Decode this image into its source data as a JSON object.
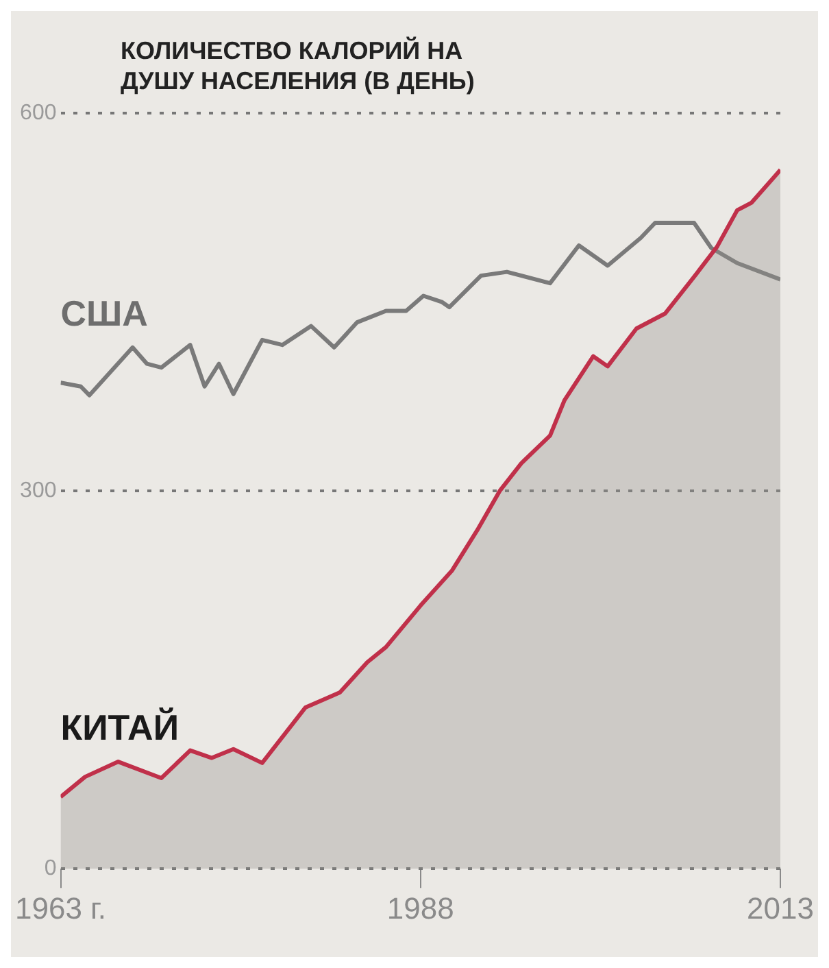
{
  "chart_data": {
    "type": "line",
    "title": "КОЛИЧЕСТВО КАЛОРИЙ НА ДУШУ НАСЕЛЕНИЯ (В ДЕНЬ)",
    "xlim": [
      1963,
      2013
    ],
    "xticks": [
      {
        "value": 1963,
        "label": "1963 г."
      },
      1988,
      2013
    ],
    "ylim": [
      0,
      600
    ],
    "yticks": [
      0,
      300,
      600
    ],
    "grid": "y",
    "line_style": "solid",
    "marker": "none",
    "series": [
      {
        "name": "США",
        "color": "#7a7a7a",
        "x": [
          1963,
          1964.4,
          1965,
          1968,
          1969,
          1970,
          1972,
          1973,
          1974,
          1975,
          1977,
          1978.4,
          1980.4,
          1982,
          1983.6,
          1985.6,
          1987,
          1988.2,
          1989.5,
          1990,
          1992.2,
          1994,
          1997,
          1999,
          2001,
          2003.3,
          2004.3,
          2007,
          2008.2,
          2010,
          2013
        ],
        "values": [
          386,
          383,
          376,
          414,
          401,
          398,
          416,
          383,
          401,
          377,
          420,
          416,
          431,
          414,
          434,
          443,
          443,
          455,
          450,
          446,
          471,
          474,
          465,
          495,
          479,
          501,
          513,
          513,
          493,
          481,
          468
        ]
      },
      {
        "name": "КИТАЙ",
        "type": "area",
        "color": "#c0304a",
        "x": [
          1963,
          1964.7,
          1967,
          1970,
          1972,
          1973.5,
          1975,
          1977,
          1980,
          1982.4,
          1984.3,
          1985.6,
          1988,
          1990.2,
          1992,
          1993.5,
          1995,
          1997,
          1998,
          2000,
          2001,
          2003,
          2005,
          2007,
          2008.6,
          2010,
          2011,
          2013
        ],
        "values": [
          57,
          73,
          85,
          72,
          94,
          88,
          95,
          84,
          128,
          140,
          164,
          176,
          209,
          237,
          270,
          300,
          322,
          344,
          372,
          407,
          399,
          429,
          441,
          470,
          494,
          523,
          529,
          555
        ]
      }
    ]
  }
}
